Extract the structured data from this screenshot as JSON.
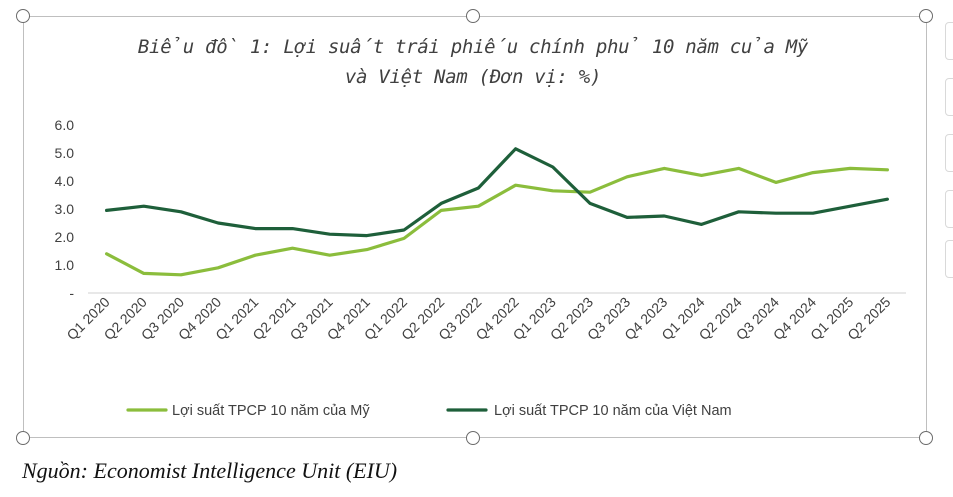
{
  "chart_data": {
    "type": "line",
    "title_lines": [
      "Biểu đồ 1: Lợi suất trái phiếu chính phủ 10 năm của Mỹ",
      "và Việt Nam (Đơn vị: %)"
    ],
    "categories": [
      "Q1 2020",
      "Q2 2020",
      "Q3 2020",
      "Q4 2020",
      "Q1 2021",
      "Q2 2021",
      "Q3 2021",
      "Q4 2021",
      "Q1 2022",
      "Q2 2022",
      "Q3 2022",
      "Q4 2022",
      "Q1 2023",
      "Q2 2023",
      "Q3 2023",
      "Q4 2023",
      "Q1 2024",
      "Q2 2024",
      "Q3 2024",
      "Q4 2024",
      "Q1 2025",
      "Q2 2025"
    ],
    "y_tick_labels": [
      "-",
      "1.0",
      "2.0",
      "3.0",
      "4.0",
      "5.0",
      "6.0"
    ],
    "ylim": [
      0,
      6
    ],
    "grid": false,
    "legend_position": "bottom",
    "series": [
      {
        "name": "Lợi suất TPCP 10 năm của Mỹ",
        "color": "#8bbd3c",
        "values": [
          1.4,
          0.7,
          0.65,
          0.9,
          1.35,
          1.6,
          1.35,
          1.55,
          1.95,
          2.95,
          3.1,
          3.85,
          3.65,
          3.6,
          4.15,
          4.45,
          4.2,
          4.45,
          3.95,
          4.3,
          4.45,
          4.4
        ]
      },
      {
        "name": "Lợi suất TPCP 10 năm của Việt Nam",
        "color": "#1e5f3a",
        "values": [
          2.95,
          3.1,
          2.9,
          2.5,
          2.3,
          2.3,
          2.1,
          2.05,
          2.25,
          3.2,
          3.75,
          5.15,
          4.5,
          3.2,
          2.7,
          2.75,
          2.45,
          2.9,
          2.85,
          2.85,
          3.1,
          3.35
        ]
      }
    ]
  },
  "source_text": "Nguồn: Economist Intelligence Unit (EIU)"
}
